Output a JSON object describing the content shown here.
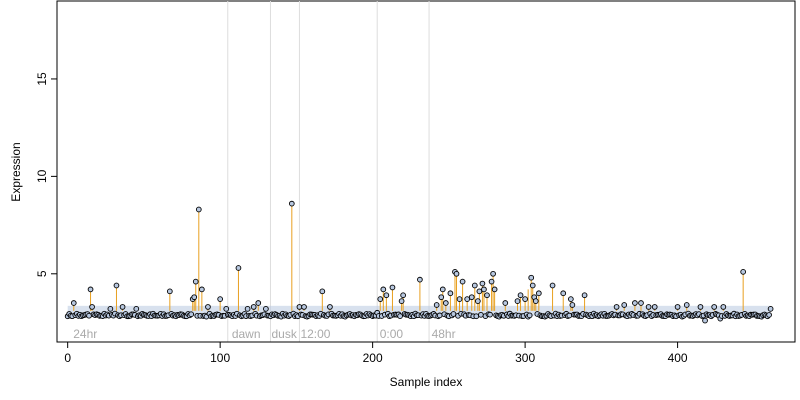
{
  "chart_data": {
    "type": "scatter",
    "xlabel": "Sample index",
    "ylabel": "Expression",
    "xlim": [
      -7,
      477
    ],
    "ylim": [
      1.5,
      19
    ],
    "x_ticks": [
      0,
      100,
      200,
      300,
      400
    ],
    "y_ticks": [
      5,
      10,
      15
    ],
    "baseline": 3.1,
    "grid": false,
    "legend": "none",
    "colors": {
      "stem": "#e8a020",
      "baseline_band": "#b8c8e0",
      "point_fill": "#b8c8e0",
      "point_stroke": "#000000",
      "divider": "#dddddd",
      "annotation": "#aaaaaa"
    },
    "dividers": [
      105,
      133,
      152,
      203,
      237
    ],
    "annotations": [
      {
        "x": 3,
        "text": "24hr"
      },
      {
        "x": 107,
        "text": "dawn"
      },
      {
        "x": 133,
        "text": "dusk"
      },
      {
        "x": 152,
        "text": "12:00"
      },
      {
        "x": 204,
        "text": "0:00"
      },
      {
        "x": 238,
        "text": "48hr"
      }
    ],
    "peaks": [
      {
        "x": 4,
        "y": 3.5
      },
      {
        "x": 15,
        "y": 4.2
      },
      {
        "x": 16,
        "y": 3.3
      },
      {
        "x": 28,
        "y": 3.2
      },
      {
        "x": 32,
        "y": 4.4
      },
      {
        "x": 36,
        "y": 3.3
      },
      {
        "x": 45,
        "y": 3.2
      },
      {
        "x": 67,
        "y": 4.1
      },
      {
        "x": 82,
        "y": 3.7
      },
      {
        "x": 83,
        "y": 3.8
      },
      {
        "x": 84,
        "y": 4.6
      },
      {
        "x": 86,
        "y": 8.3
      },
      {
        "x": 88,
        "y": 4.2
      },
      {
        "x": 92,
        "y": 3.3
      },
      {
        "x": 100,
        "y": 3.7
      },
      {
        "x": 104,
        "y": 3.2
      },
      {
        "x": 112,
        "y": 5.3
      },
      {
        "x": 118,
        "y": 3.2
      },
      {
        "x": 122,
        "y": 3.3
      },
      {
        "x": 125,
        "y": 3.5
      },
      {
        "x": 130,
        "y": 3.2
      },
      {
        "x": 147,
        "y": 8.6
      },
      {
        "x": 152,
        "y": 3.3
      },
      {
        "x": 155,
        "y": 3.3
      },
      {
        "x": 167,
        "y": 4.1
      },
      {
        "x": 172,
        "y": 3.3
      },
      {
        "x": 205,
        "y": 3.7
      },
      {
        "x": 207,
        "y": 4.2
      },
      {
        "x": 209,
        "y": 3.9
      },
      {
        "x": 213,
        "y": 4.3
      },
      {
        "x": 219,
        "y": 3.6
      },
      {
        "x": 220,
        "y": 3.9
      },
      {
        "x": 231,
        "y": 4.7
      },
      {
        "x": 242,
        "y": 3.4
      },
      {
        "x": 245,
        "y": 3.8
      },
      {
        "x": 246,
        "y": 4.2
      },
      {
        "x": 248,
        "y": 3.5
      },
      {
        "x": 251,
        "y": 4.0
      },
      {
        "x": 254,
        "y": 5.1
      },
      {
        "x": 255,
        "y": 5.0
      },
      {
        "x": 257,
        "y": 3.7
      },
      {
        "x": 259,
        "y": 4.6
      },
      {
        "x": 262,
        "y": 3.7
      },
      {
        "x": 265,
        "y": 3.8
      },
      {
        "x": 267,
        "y": 4.4
      },
      {
        "x": 269,
        "y": 3.6
      },
      {
        "x": 270,
        "y": 4.1
      },
      {
        "x": 272,
        "y": 4.5
      },
      {
        "x": 273,
        "y": 4.2
      },
      {
        "x": 275,
        "y": 3.9
      },
      {
        "x": 278,
        "y": 4.6
      },
      {
        "x": 279,
        "y": 5.0
      },
      {
        "x": 280,
        "y": 4.2
      },
      {
        "x": 287,
        "y": 3.5
      },
      {
        "x": 295,
        "y": 3.6
      },
      {
        "x": 297,
        "y": 3.9
      },
      {
        "x": 300,
        "y": 3.7
      },
      {
        "x": 302,
        "y": 4.2
      },
      {
        "x": 304,
        "y": 4.8
      },
      {
        "x": 305,
        "y": 4.4
      },
      {
        "x": 306,
        "y": 3.8
      },
      {
        "x": 307,
        "y": 3.6
      },
      {
        "x": 309,
        "y": 4.0
      },
      {
        "x": 318,
        "y": 4.4
      },
      {
        "x": 325,
        "y": 4.0
      },
      {
        "x": 330,
        "y": 3.7
      },
      {
        "x": 331,
        "y": 3.4
      },
      {
        "x": 339,
        "y": 3.9
      },
      {
        "x": 360,
        "y": 3.3
      },
      {
        "x": 365,
        "y": 3.4
      },
      {
        "x": 372,
        "y": 3.5
      },
      {
        "x": 376,
        "y": 3.5
      },
      {
        "x": 381,
        "y": 3.3
      },
      {
        "x": 385,
        "y": 3.3
      },
      {
        "x": 400,
        "y": 3.3
      },
      {
        "x": 406,
        "y": 3.4
      },
      {
        "x": 415,
        "y": 3.3
      },
      {
        "x": 424,
        "y": 3.3
      },
      {
        "x": 430,
        "y": 3.3
      },
      {
        "x": 443,
        "y": 5.1
      },
      {
        "x": 461,
        "y": 3.2
      }
    ],
    "low_points": [
      {
        "x": 91,
        "y": 2.8
      },
      {
        "x": 140,
        "y": 2.8
      },
      {
        "x": 157,
        "y": 2.8
      },
      {
        "x": 182,
        "y": 2.8
      },
      {
        "x": 203,
        "y": 3.0
      },
      {
        "x": 283,
        "y": 2.8
      },
      {
        "x": 302,
        "y": 2.8
      },
      {
        "x": 313,
        "y": 2.8
      },
      {
        "x": 403,
        "y": 2.8
      },
      {
        "x": 418,
        "y": 2.6
      },
      {
        "x": 428,
        "y": 2.7
      },
      {
        "x": 455,
        "y": 2.8
      }
    ]
  }
}
